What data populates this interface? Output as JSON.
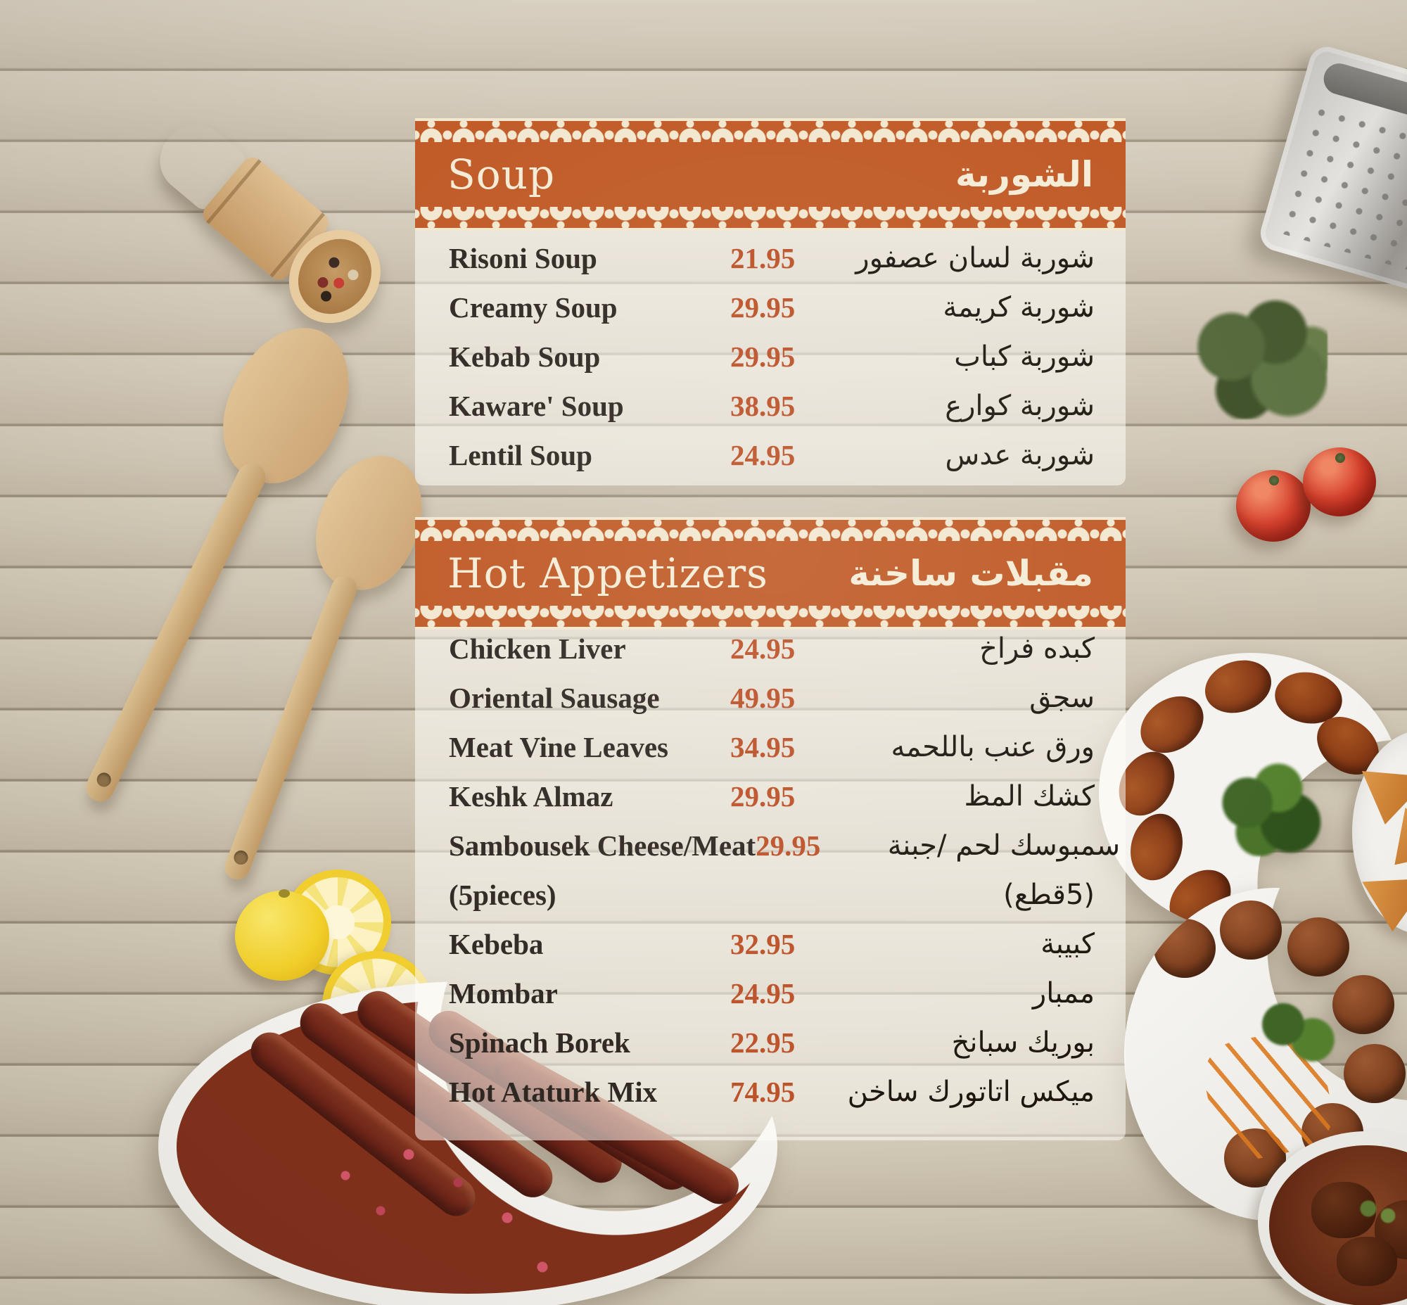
{
  "colors": {
    "banner_orange": "#c05a26",
    "lace_cream": "#f2e7cf",
    "price_orange": "#bc5127",
    "item_text": "#2f2721",
    "arabic_text": "#1d1710",
    "panel_overlay": "rgba(255,253,247,0.55)"
  },
  "sections": [
    {
      "id": "soup",
      "title_en": "Soup",
      "title_ar": "الشوربة",
      "items": [
        {
          "en": "Risoni Soup",
          "price": "21.95",
          "ar": "شوربة لسان عصفور"
        },
        {
          "en": "Creamy Soup",
          "price": "29.95",
          "ar": "شوربة كريمة"
        },
        {
          "en": "Kebab Soup",
          "price": "29.95",
          "ar": "شوربة كباب"
        },
        {
          "en": "Kaware' Soup",
          "price": "38.95",
          "ar": "شوربة كوارع"
        },
        {
          "en": "Lentil Soup",
          "price": "24.95",
          "ar": "شوربة عدس"
        }
      ]
    },
    {
      "id": "hot-appetizers",
      "title_en": "Hot Appetizers",
      "title_ar": "مقبلات ساخنة",
      "items": [
        {
          "en": "Chicken Liver",
          "price": "24.95",
          "ar": "كبده فراخ"
        },
        {
          "en": "Oriental Sausage",
          "price": "49.95",
          "ar": "سجق"
        },
        {
          "en": "Meat Vine Leaves",
          "price": "34.95",
          "ar": "ورق عنب باللحمه"
        },
        {
          "en": "Keshk Almaz",
          "price": "29.95",
          "ar": "كشك المظ"
        },
        {
          "en": "Sambousek Cheese/Meat",
          "price": "29.95",
          "ar": "سمبوسك لحم /جبنة"
        },
        {
          "en": "(5pieces)",
          "price": "",
          "ar": "(5قطع)"
        },
        {
          "en": "Kebeba",
          "price": "32.95",
          "ar": "كبيبة"
        },
        {
          "en": "Mombar",
          "price": "24.95",
          "ar": "ممبار"
        },
        {
          "en": "Spinach Borek",
          "price": "22.95",
          "ar": "بوريك سبانخ"
        },
        {
          "en": "Hot Ataturk Mix",
          "price": "74.95",
          "ar": "ميكس اتاتورك ساخن"
        }
      ]
    }
  ],
  "decor": {
    "photos": [
      "wooden-spice-scoop",
      "metal-grater",
      "herb-sprig",
      "tomatoes",
      "wooden-spatulas",
      "lemon-and-slices",
      "sujuk-sausage-bowl",
      "kibbeh-plate",
      "sambousek-plate",
      "meatball-plate",
      "stew-bowl"
    ]
  }
}
